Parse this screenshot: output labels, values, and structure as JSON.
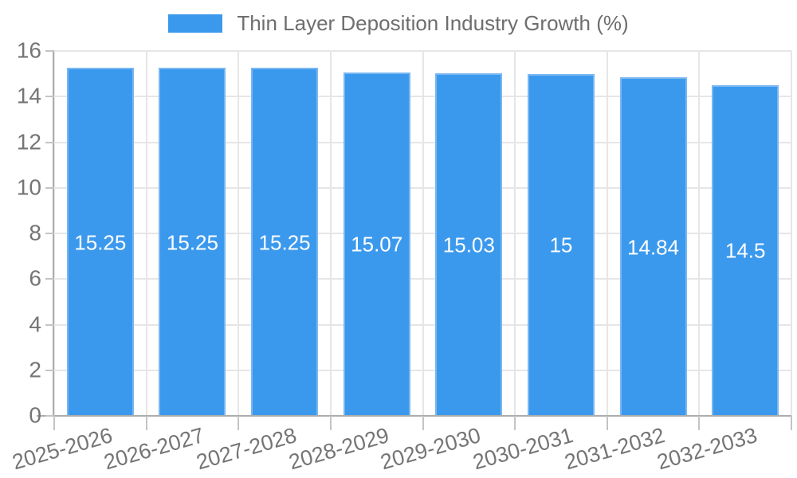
{
  "legend": {
    "label": "Thin Layer Deposition Industry Growth (%)",
    "position": "top"
  },
  "chart_data": {
    "type": "bar",
    "title": "Thin Layer Deposition Industry Growth (%)",
    "categories": [
      "2025-2026",
      "2026-2027",
      "2027-2028",
      "2028-2029",
      "2029-2030",
      "2030-2031",
      "2031-2032",
      "2032-2033"
    ],
    "values": [
      15.25,
      15.25,
      15.25,
      15.07,
      15.03,
      15,
      14.84,
      14.5
    ],
    "value_labels": [
      "15.25",
      "15.25",
      "15.25",
      "15.07",
      "15.03",
      "15",
      "14.84",
      "14.5"
    ],
    "xlabel": "",
    "ylabel": "",
    "ylim": [
      0,
      16
    ],
    "yticks": [
      0,
      2,
      4,
      6,
      8,
      10,
      12,
      14,
      16
    ],
    "grid": true,
    "legend_position": "top",
    "colors": {
      "bar": "#3b99ed",
      "bar_border": "#79b7f2",
      "grid": "#e6e6e6",
      "axis": "#adadad",
      "tick": "#c4c4c4",
      "text": "#757575",
      "value_label": "#ffffff"
    }
  }
}
